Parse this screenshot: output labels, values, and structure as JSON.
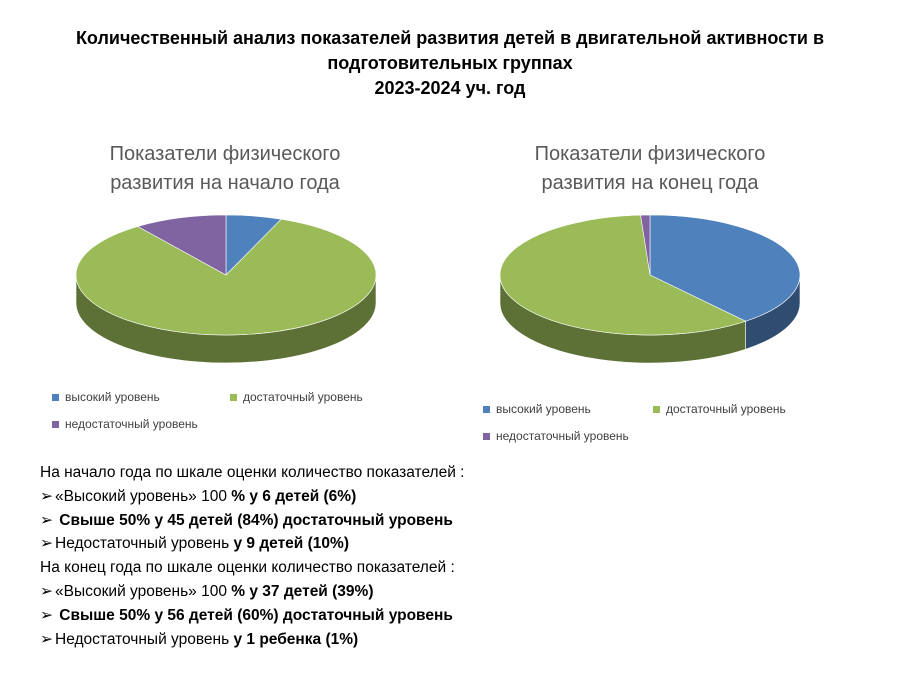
{
  "title_lines": [
    "Количественный анализ показателей развития детей в двигательной активности в",
    "подготовительных группах",
    "2023-2024 уч. год"
  ],
  "chart_data": [
    {
      "type": "pie",
      "title_lines": [
        "Показатели физического",
        "развития на начало года"
      ],
      "categories": [
        "высокий уровень",
        "достаточный уровень",
        "недостаточный уровень"
      ],
      "values": [
        6,
        84,
        10
      ],
      "colors": [
        "#4f81bd",
        "#9bbb59",
        "#8064a2"
      ],
      "legend_position": "bottom",
      "style": "3d"
    },
    {
      "type": "pie",
      "title_lines": [
        "Показатели физического",
        "развития на конец года"
      ],
      "categories": [
        "высокий уровень",
        "достаточный уровень",
        "недостаточный уровень"
      ],
      "values": [
        39,
        60,
        1
      ],
      "colors": [
        "#4f81bd",
        "#9bbb59",
        "#8064a2"
      ],
      "legend_position": "bottom",
      "style": "3d"
    }
  ],
  "summary": {
    "start_heading": "На начало года по шкале оценки количество показателей :",
    "start_items": [
      {
        "normal": "«Высокий уровень» 100 ",
        "bold": "% у 6 детей (6%)"
      },
      {
        "normal": "",
        "bold": " Свыше 50% у 45 детей (84%) достаточный  уровень"
      },
      {
        "normal": "Недостаточный уровень ",
        "bold": "у 9 детей (10%)"
      }
    ],
    "end_heading": "На конец года по шкале оценки количество показателей :",
    "end_items": [
      {
        "normal": "«Высокий уровень» 100 ",
        "bold": "% у 37 детей (39%)"
      },
      {
        "normal": "",
        "bold": " Свыше 50% у 56 детей (60%) достаточный  уровень"
      },
      {
        "normal": "Недостаточный уровень ",
        "bold": "у 1 ребенка (1%)"
      }
    ]
  }
}
